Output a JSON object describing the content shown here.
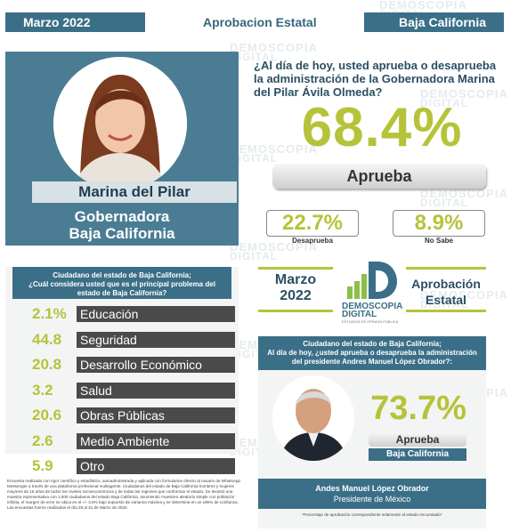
{
  "header": {
    "date": "Marzo 2022",
    "title": "Aprobacion Estatal",
    "state": "Baja California"
  },
  "watermark": {
    "line1": "DEMOSCOPIA",
    "line2": "DIGITAL"
  },
  "profile": {
    "name": "Marina del Pilar",
    "role_line1": "Gobernadora",
    "role_line2": "Baja California"
  },
  "question": {
    "text": "¿Al día de hoy, usted aprueba o desaprueba la administración de la Gobernadora Marina del Pilar Ávila Olmeda?",
    "approve_pct": "68.4%",
    "approve_label": "Aprueba",
    "disapprove_pct": "22.7%",
    "disapprove_label": "Desaprueba",
    "unknown_pct": "8.9%",
    "unknown_label": "No Sabe"
  },
  "problems": {
    "header_line1": "Ciudadano del estado de Baja California;",
    "header_line2": "¿Cuál considera usted que es el principal problema del",
    "header_line3": "estado de Baja California?",
    "items": [
      {
        "value": "2.1%",
        "label": "Educación"
      },
      {
        "value": "44.8",
        "label": "Seguridad"
      },
      {
        "value": "20.8",
        "label": "Desarrollo Económico"
      },
      {
        "value": "3.2",
        "label": "Salud"
      },
      {
        "value": "20.6",
        "label": "Obras Públicas"
      },
      {
        "value": "2.6",
        "label": "Medio Ambiente"
      },
      {
        "value": "5.9",
        "label": "Otro"
      }
    ]
  },
  "methodology": "Encuesta realizada con rigor científico y estadístico, autoadministrada y aplicada con formularios directo al usuario de WhatsApp Messenger a través de una plataforma profesional multiagente. Ciudadanos del estado de Baja California hombres y mujeres mayores de 18 años de todos los niveles socioeconómicos y de todas las regiones que conforman el estado. Se levantó una muestra representativa con 1,000 ciudadanos del estado Baja California, asumiendo muestreo aleatorio simple con población infinita, el margen de error se ubica en el +/- 3.8% bajo supuesto de varianza máxima y se determina en un ±95% de confianza. Las encuestas fueron realizadas el día 28 al 31 de Marzo de 2022.",
  "center": {
    "month": "Marzo",
    "year": "2022",
    "approval_line1": "Aprobación",
    "approval_line2": "Estatal",
    "logo_line1": "DEMOSCOPIA",
    "logo_line2": "DIGITAL",
    "logo_sub": "ESTUDIOS DE OPINIÓN PÚBLICA"
  },
  "amlo": {
    "header_line1": "Ciudadano del estado de Baja California;",
    "header_line2": "Al día de hoy, ¿usted aprueba o desaprueba la administración",
    "header_line3": "del presidente Andres Manuel López Obrador?:",
    "pct": "73.7%",
    "approve_label": "Aprueba",
    "state": "Baja California",
    "name": "Andes Manuel López Obrador",
    "role": "Presidente de México",
    "footnote": "*Porcentaje de aprobación correspondiente solamente al estado encuestado*"
  },
  "colors": {
    "accent_green": "#b6c33a",
    "brand_blue": "#3b6f87",
    "dark_bar": "#4a4a4a"
  }
}
